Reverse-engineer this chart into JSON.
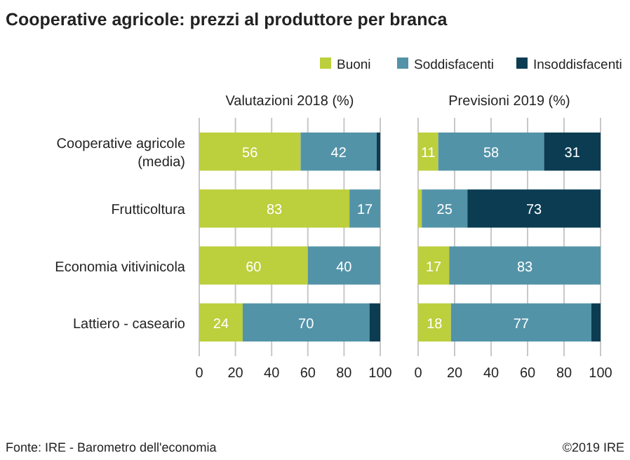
{
  "chart_data": [
    {
      "type": "bar",
      "orientation": "horizontal",
      "stacked": true,
      "title": "Cooperative agricole: prezzi al produttore per branca",
      "subtitle": "Valutazioni 2018 (%)",
      "categories": [
        "Cooperative agricole (media)",
        "Frutticoltura",
        "Economia vitivinicola",
        "Lattiero - caseario"
      ],
      "series": [
        {
          "name": "Buoni",
          "color": "#bccf3c",
          "values": [
            56,
            83,
            60,
            24
          ],
          "value_labels": [
            "56",
            "83",
            "60",
            "24"
          ]
        },
        {
          "name": "Soddisfacenti",
          "color": "#5393a8",
          "values": [
            42,
            17,
            40,
            70
          ],
          "value_labels": [
            "42",
            "17",
            "40",
            "70"
          ]
        },
        {
          "name": "Insoddisfacenti",
          "color": "#0b3c52",
          "values": [
            2,
            0,
            0,
            6
          ],
          "value_labels": [
            null,
            null,
            null,
            null
          ]
        }
      ],
      "xlim": [
        0,
        100
      ],
      "xticks": [
        0,
        20,
        40,
        60,
        80,
        100
      ],
      "grid": "x",
      "legend": "top",
      "annotations": [
        "Fonte: IRE - Barometro dell'economia",
        "©2019 IRE"
      ]
    },
    {
      "type": "bar",
      "orientation": "horizontal",
      "stacked": true,
      "subtitle": "Previsioni 2019 (%)",
      "categories": [
        null,
        null,
        null,
        null
      ],
      "series": [
        {
          "color": "#bccf3c",
          "values": [
            11,
            2,
            17,
            18
          ],
          "value_labels": [
            "11",
            null,
            "17",
            "18"
          ]
        },
        {
          "color": "#5393a8",
          "values": [
            58,
            25,
            83,
            77
          ],
          "value_labels": [
            "58",
            "25",
            "83",
            "77"
          ]
        },
        {
          "color": "#0b3c52",
          "values": [
            31,
            73,
            0,
            5
          ],
          "value_labels": [
            "31",
            "73",
            null,
            null
          ]
        }
      ],
      "xlim": [
        0,
        100
      ],
      "xticks": [
        0,
        20,
        40,
        60,
        80,
        100
      ],
      "grid": "x",
      "tick_labels": "x"
    }
  ]
}
